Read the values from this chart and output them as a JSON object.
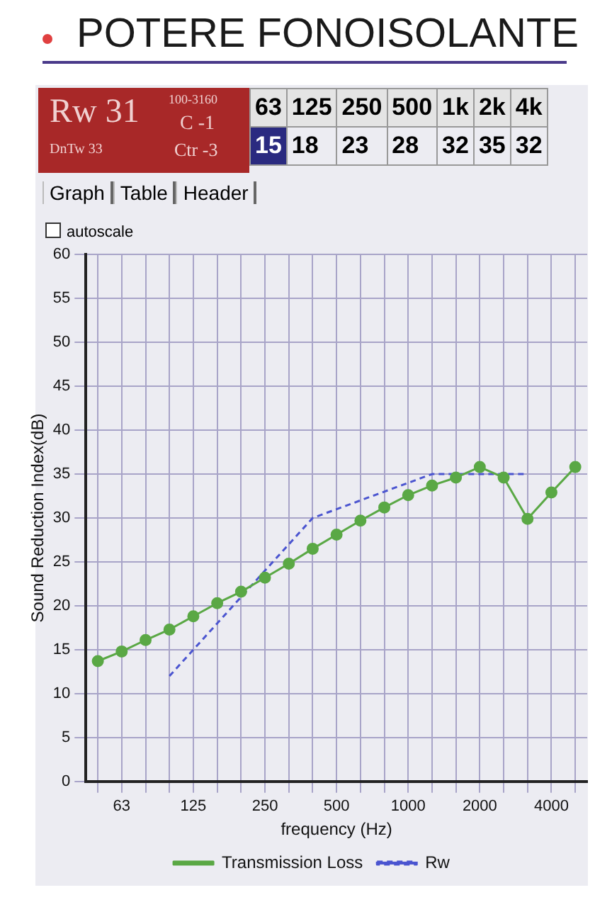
{
  "chart_data": {
    "type": "line",
    "title": "POTERE FONOISOLANTE",
    "xlabel": "frequency (Hz)",
    "ylabel": "Sound Reduction Index(dB)",
    "categories": [
      null,
      "63",
      null,
      null,
      "125",
      null,
      null,
      "250",
      null,
      null,
      "500",
      null,
      null,
      "1000",
      null,
      null,
      "2000",
      null,
      null,
      "4000",
      null
    ],
    "series": [
      {
        "name": "Transmission Loss",
        "color": "#5aa845",
        "marker": "circle",
        "line_style": "solid",
        "values": [
          13.7,
          14.8,
          16.1,
          17.3,
          18.8,
          20.3,
          21.6,
          23.2,
          24.8,
          26.5,
          28.1,
          29.7,
          31.2,
          32.6,
          33.7,
          34.6,
          35.8,
          34.6,
          29.9,
          32.9,
          35.8
        ]
      },
      {
        "name": "Rw",
        "color": "#4b55d0",
        "marker": "none",
        "line_style": "dashed",
        "values": [
          null,
          null,
          null,
          12,
          15,
          18,
          21,
          24,
          27,
          30,
          31,
          32,
          33,
          34,
          35,
          35,
          35,
          35,
          35,
          null,
          null
        ]
      }
    ],
    "ylim": [
      0,
      60
    ],
    "yticks": [
      0,
      5,
      10,
      15,
      20,
      25,
      30,
      35,
      40,
      45,
      50,
      55,
      60
    ],
    "grid": true,
    "legend": "bottom",
    "annotations": [
      "Rw 31",
      "100-3160",
      "C -1",
      "DnTw 33",
      "Ctr -3",
      "63",
      "125",
      "250",
      "500",
      "1k",
      "2k",
      "4k",
      "15",
      "18",
      "23",
      "28",
      "32",
      "35",
      "32",
      "Graph",
      "Table",
      "Header",
      "autoscale"
    ]
  }
}
